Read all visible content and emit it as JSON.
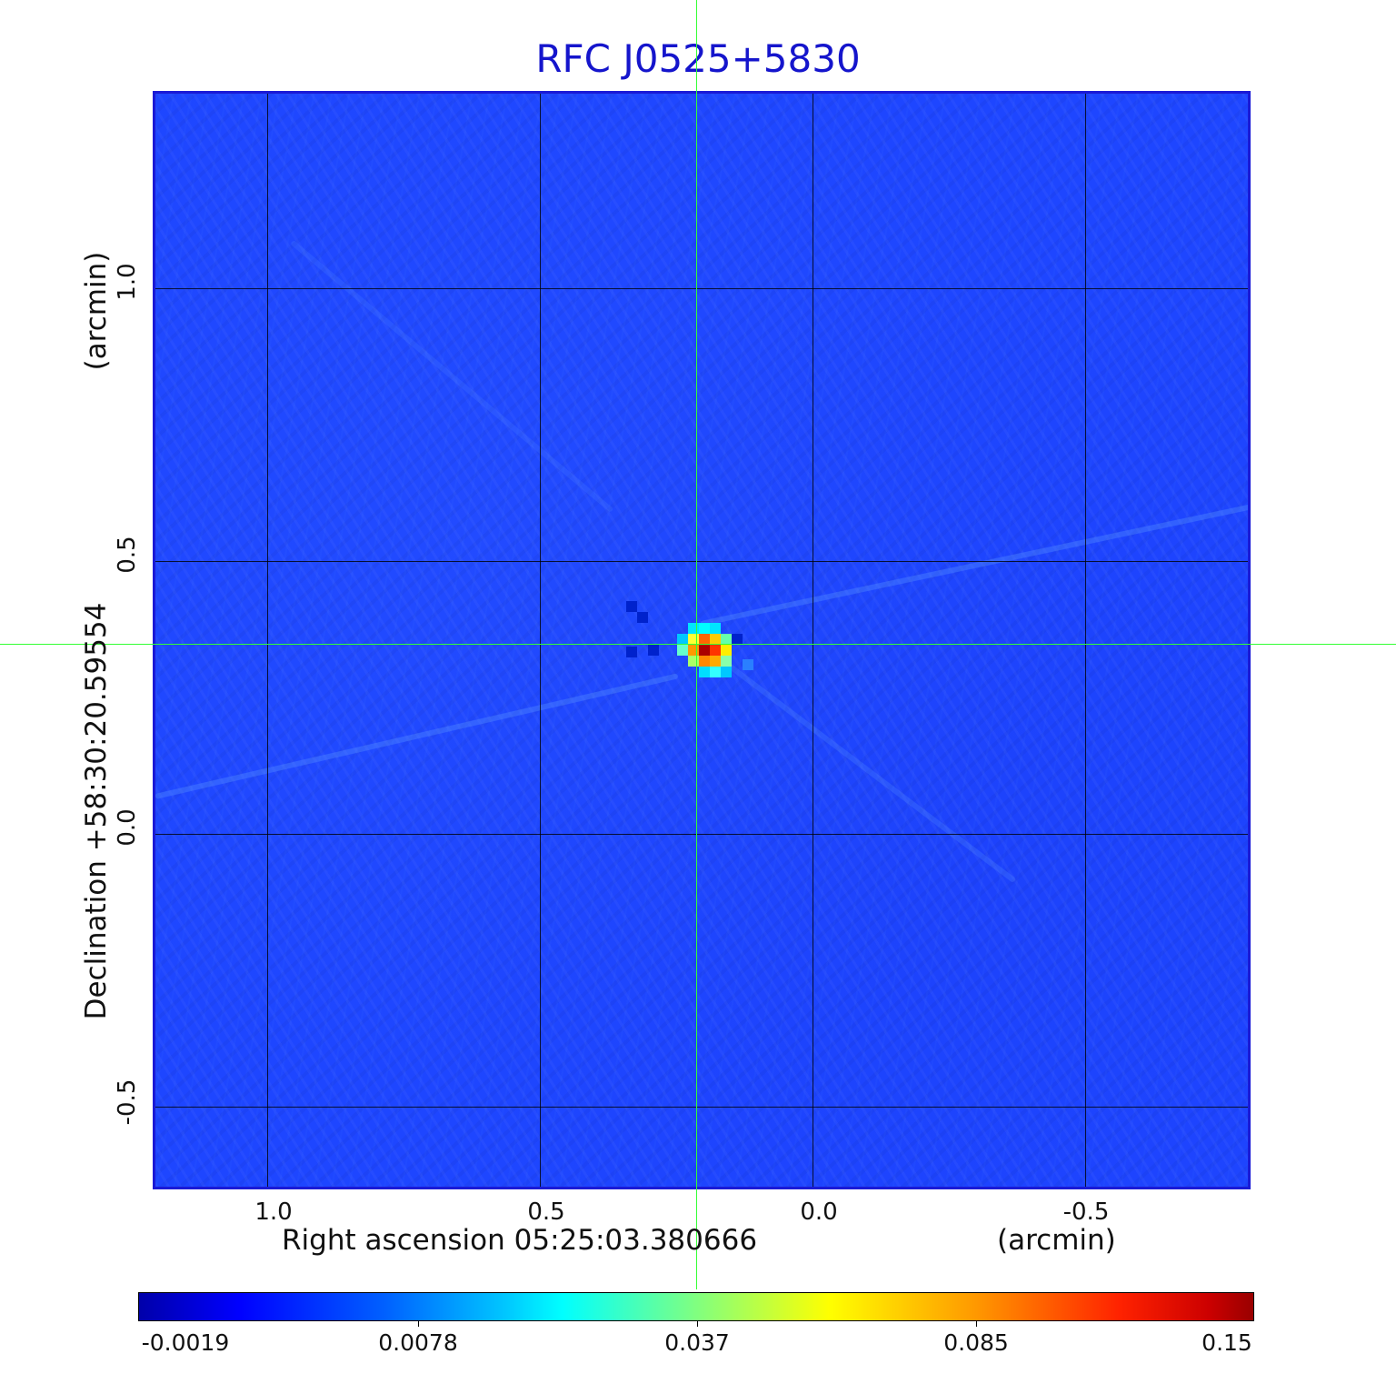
{
  "title": "RFC J0525+5830",
  "x_axis": {
    "label": "Right ascension  05:25:03.380666",
    "unit": "(arcmin)",
    "ticks": [
      "1.0",
      "0.5",
      "0.0",
      "-0.5"
    ]
  },
  "y_axis": {
    "label": "Declination  +58:30:20.59554",
    "unit": "(arcmin)",
    "ticks": [
      "1.0",
      "0.5",
      "0.0",
      "-0.5"
    ]
  },
  "colorbar": {
    "labels": [
      "-0.0019",
      "0.0078",
      "0.037",
      "0.085",
      "0.15"
    ],
    "colormap": "jet"
  },
  "colors": {
    "title": "#1515cc",
    "background_map": "#1e46ff",
    "crosshair": "#33ff33",
    "frame": "#1a1ad6"
  }
}
